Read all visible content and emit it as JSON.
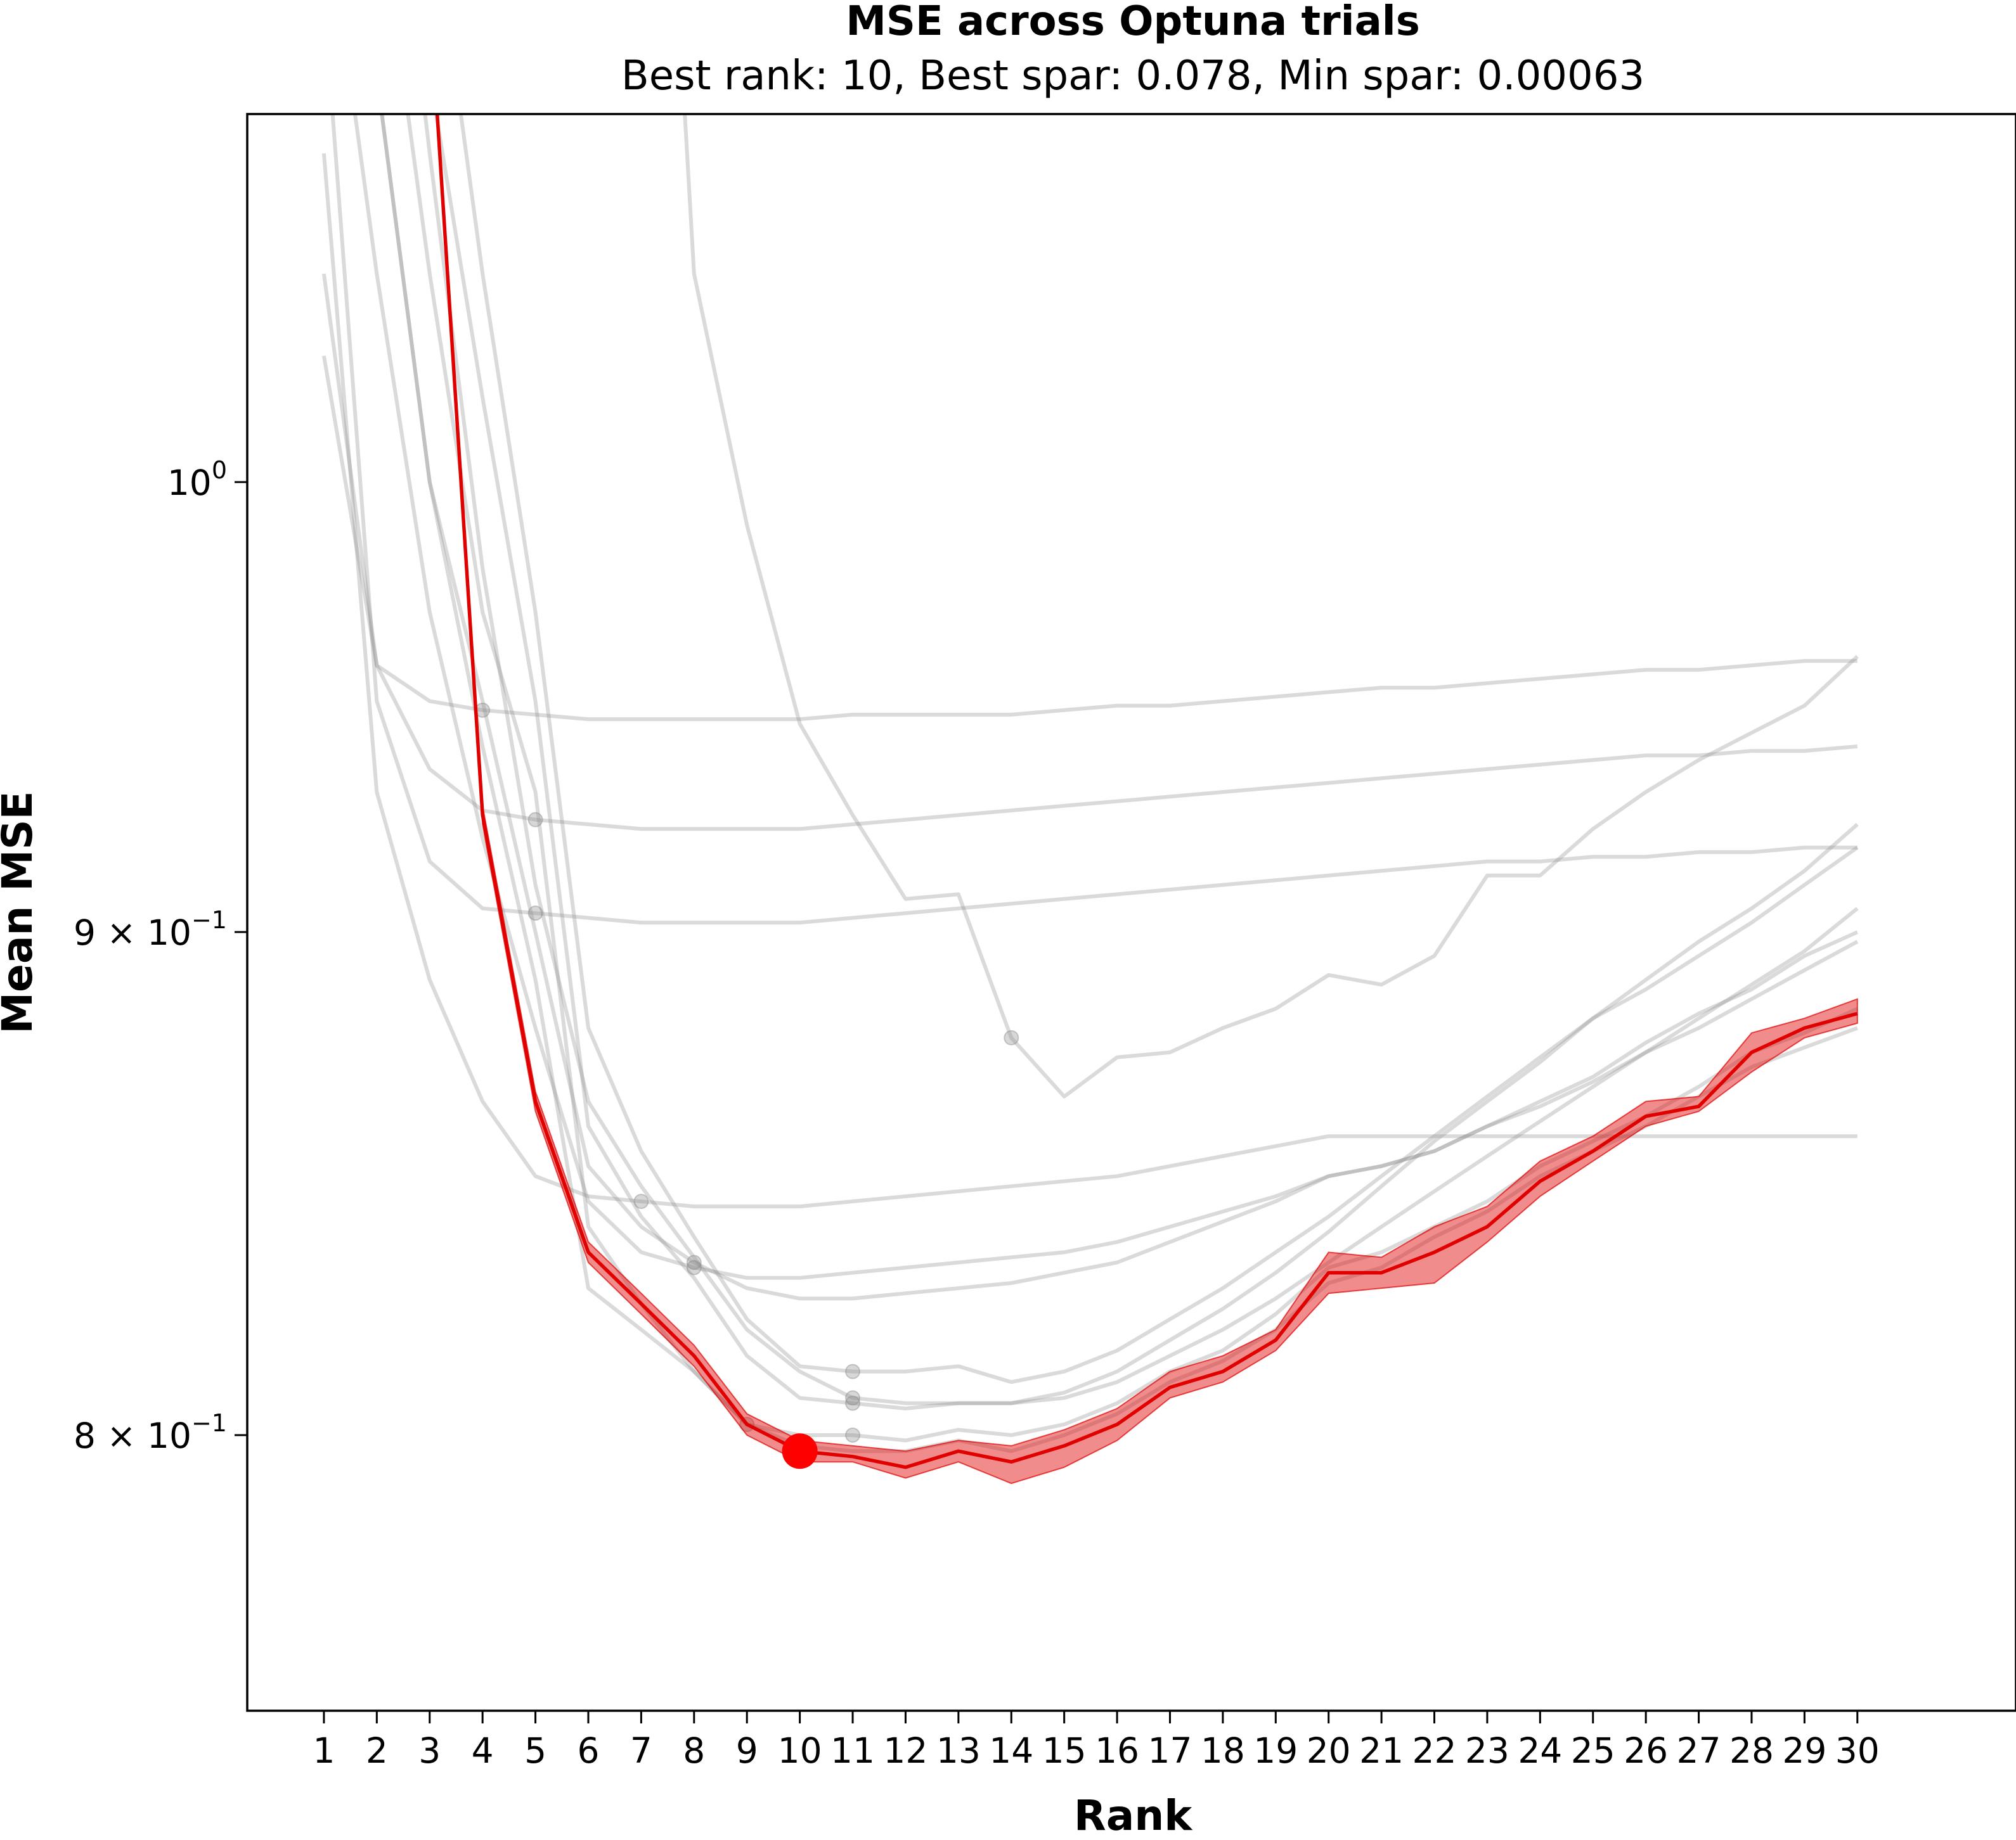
{
  "chart_data": {
    "type": "line",
    "title": "MSE across Optuna trials",
    "subtitle": "Best rank: 10, Best spar: 0.078, Min spar: 0.00063",
    "xlabel": "Rank",
    "ylabel": "Mean MSE",
    "yscale": "log",
    "ylim": [
      0.75,
      1.09
    ],
    "xlim": [
      -0.45,
      33.0
    ],
    "x": [
      1,
      2,
      3,
      4,
      5,
      6,
      7,
      8,
      9,
      10,
      11,
      12,
      13,
      14,
      15,
      16,
      17,
      18,
      19,
      20,
      21,
      22,
      23,
      24,
      25,
      26,
      27,
      28,
      29,
      30
    ],
    "x_tick_labels": [
      "1",
      "2",
      "3",
      "4",
      "5",
      "6",
      "7",
      "8",
      "9",
      "10",
      "11",
      "12",
      "13",
      "14",
      "15",
      "16",
      "17",
      "18",
      "19",
      "20",
      "21",
      "22",
      "23",
      "24",
      "25",
      "26",
      "27",
      "28",
      "29",
      "30"
    ],
    "y_ticks": [
      {
        "value": 1.0,
        "base": "10",
        "exp": "0"
      },
      {
        "value": 0.9,
        "base": "9 × 10",
        "exp": "−1"
      },
      {
        "value": 0.8,
        "base": "8 × 10",
        "exp": "−1"
      }
    ],
    "grid": false,
    "trials": [
      {
        "values": [
          1.03,
          0.958,
          0.95,
          0.948,
          0.947,
          0.946,
          0.946,
          0.946,
          0.946,
          0.946,
          0.947,
          0.947,
          0.947,
          0.947,
          0.948,
          0.949,
          0.949,
          0.95,
          0.951,
          0.952,
          0.953,
          0.953,
          0.954,
          0.955,
          0.956,
          0.957,
          0.957,
          0.958,
          0.959,
          0.959
        ],
        "marker_rank": 4
      },
      {
        "values": [
          1.05,
          0.958,
          0.935,
          0.926,
          0.924,
          0.923,
          0.922,
          0.922,
          0.922,
          0.922,
          0.923,
          0.924,
          0.925,
          0.926,
          0.927,
          0.928,
          0.929,
          0.93,
          0.931,
          0.932,
          0.933,
          0.934,
          0.935,
          0.936,
          0.937,
          0.938,
          0.938,
          0.939,
          0.939,
          0.94
        ],
        "marker_rank": 5
      },
      {
        "values": [
          1.12,
          0.95,
          0.915,
          0.905,
          0.904,
          0.903,
          0.902,
          0.902,
          0.902,
          0.902,
          0.903,
          0.904,
          0.905,
          0.906,
          0.907,
          0.908,
          0.909,
          0.91,
          0.911,
          0.912,
          0.913,
          0.914,
          0.915,
          0.915,
          0.916,
          0.916,
          0.917,
          0.917,
          0.918,
          0.918
        ],
        "marker_rank": 5
      },
      {
        "values": [
          1.08,
          0.93,
          0.89,
          0.865,
          0.85,
          0.846,
          0.845,
          0.844,
          0.844,
          0.844,
          0.845,
          0.846,
          0.847,
          0.848,
          0.849,
          0.85,
          0.852,
          0.854,
          0.856,
          0.858,
          0.858,
          0.858,
          0.858,
          0.858,
          0.858,
          0.858,
          0.858,
          0.858,
          0.858,
          0.858
        ],
        "marker_rank": 7
      },
      {
        "values": [
          1.15,
          1.05,
          0.97,
          0.92,
          0.88,
          0.845,
          0.835,
          0.832,
          0.83,
          0.83,
          0.831,
          0.832,
          0.833,
          0.834,
          0.835,
          0.837,
          0.84,
          0.843,
          0.846,
          0.85,
          0.852,
          0.855,
          0.86,
          0.865,
          0.87,
          0.877,
          0.883,
          0.888,
          0.895,
          0.9
        ],
        "marker_rank": 8
      },
      {
        "values": [
          1.2,
          1.1,
          1.0,
          0.95,
          0.9,
          0.852,
          0.84,
          0.833,
          0.828,
          0.826,
          0.826,
          0.827,
          0.828,
          0.829,
          0.831,
          0.833,
          0.837,
          0.841,
          0.845,
          0.85,
          0.852,
          0.855,
          0.86,
          0.864,
          0.869,
          0.875,
          0.88,
          0.886,
          0.892,
          0.898
        ],
        "marker_rank": 8
      },
      {
        "values": [
          1.3,
          1.2,
          1.08,
          0.98,
          0.91,
          0.865,
          0.848,
          0.834,
          0.82,
          0.812,
          0.807,
          0.806,
          0.806,
          0.806,
          0.808,
          0.812,
          0.818,
          0.824,
          0.831,
          0.839,
          0.848,
          0.857,
          0.865,
          0.873,
          0.882,
          0.888,
          0.895,
          0.902,
          0.91,
          0.918
        ],
        "marker_rank": 11
      },
      {
        "values": [
          1.3,
          1.25,
          1.15,
          1.05,
          0.97,
          0.88,
          0.855,
          0.838,
          0.822,
          0.813,
          0.812,
          0.812,
          0.813,
          0.81,
          0.812,
          0.816,
          0.822,
          0.828,
          0.835,
          0.842,
          0.85,
          0.858,
          0.866,
          0.874,
          0.882,
          0.89,
          0.898,
          0.905,
          0.913,
          0.923
        ],
        "marker_rank": 11
      },
      {
        "values": [
          1.3,
          1.2,
          1.1,
          1.02,
          0.95,
          0.86,
          0.842,
          0.83,
          0.815,
          0.807,
          0.806,
          0.805,
          0.806,
          0.806,
          0.807,
          0.81,
          0.815,
          0.82,
          0.826,
          0.833,
          0.84,
          0.847,
          0.854,
          0.861,
          0.868,
          0.875,
          0.882,
          0.889,
          0.896,
          0.905
        ],
        "marker_rank": 11
      },
      {
        "values": [
          1.3,
          1.15,
          1.05,
          0.97,
          0.93,
          0.84,
          0.825,
          0.812,
          0.802,
          0.8,
          0.8,
          0.799,
          0.801,
          0.8,
          0.802,
          0.806,
          0.812,
          0.816,
          0.823,
          0.832,
          0.835,
          0.84,
          0.845,
          0.852,
          0.857,
          0.862,
          0.868,
          0.875,
          0.879,
          0.884
        ],
        "marker_rank": 11
      },
      {
        "values": [
          1.25,
          1.1,
          1.0,
          0.94,
          0.89,
          0.828,
          0.82,
          0.812,
          0.802,
          0.798,
          0.797,
          0.797,
          0.799,
          0.797,
          0.8,
          0.804,
          0.81,
          0.814,
          0.82,
          0.829,
          0.832,
          0.838,
          0.843,
          0.85,
          0.855,
          0.86,
          0.866,
          0.872,
          0.876,
          0.88
        ],
        "marker_rank": 9
      },
      {
        "values": [
          1.3,
          1.3,
          1.3,
          1.3,
          1.3,
          1.3,
          1.3,
          1.05,
          0.99,
          0.945,
          0.925,
          0.907,
          0.908,
          0.878,
          0.866,
          0.874,
          0.875,
          0.88,
          0.884,
          0.891,
          0.889,
          0.895,
          0.912,
          0.912,
          0.922,
          0.93,
          0.937,
          0.943,
          0.949,
          0.96
        ],
        "marker_rank": 14
      }
    ],
    "best": {
      "values": [
        1.3,
        1.3,
        1.12,
        0.925,
        0.865,
        0.835,
        0.825,
        0.815,
        0.802,
        0.797,
        0.796,
        0.794,
        0.797,
        0.795,
        0.798,
        0.802,
        0.809,
        0.812,
        0.818,
        0.831,
        0.831,
        0.835,
        0.84,
        0.849,
        0.855,
        0.862,
        0.864,
        0.875,
        0.88,
        0.883
      ],
      "lower": [
        1.3,
        1.3,
        1.12,
        0.923,
        0.863,
        0.833,
        0.823,
        0.813,
        0.8,
        0.795,
        0.795,
        0.792,
        0.795,
        0.791,
        0.794,
        0.799,
        0.807,
        0.81,
        0.816,
        0.827,
        0.828,
        0.829,
        0.837,
        0.846,
        0.853,
        0.86,
        0.863,
        0.871,
        0.878,
        0.881
      ],
      "upper": [
        1.3,
        1.3,
        1.12,
        0.927,
        0.867,
        0.837,
        0.827,
        0.817,
        0.804,
        0.799,
        0.798,
        0.797,
        0.799,
        0.798,
        0.801,
        0.805,
        0.812,
        0.815,
        0.82,
        0.835,
        0.834,
        0.84,
        0.844,
        0.853,
        0.858,
        0.865,
        0.866,
        0.879,
        0.882,
        0.886
      ],
      "best_rank": 10,
      "best_value": 0.797,
      "color": "#e00000"
    },
    "colors": {
      "trials": "#8c8c8c",
      "best": "#e00000",
      "best_point": "#ff0000"
    }
  }
}
